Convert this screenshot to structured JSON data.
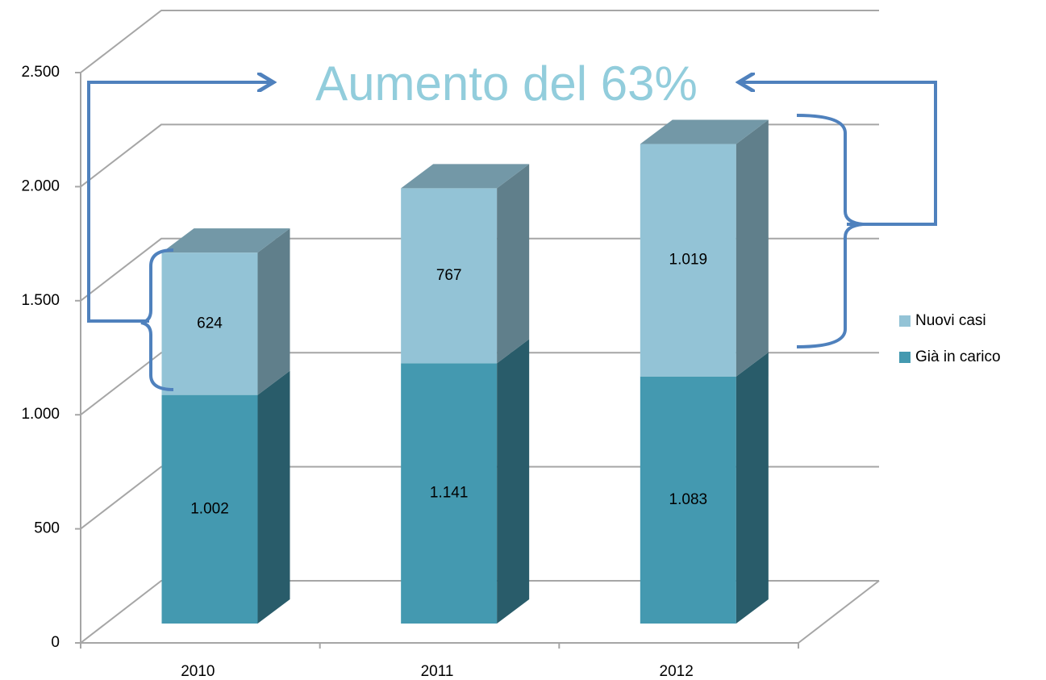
{
  "chart_data": {
    "type": "bar3d_stacked",
    "annotation": "Aumento del 63%",
    "categories": [
      "2010",
      "2011",
      "2012"
    ],
    "series": [
      {
        "name": "Già in carico",
        "color": "#4499b0",
        "values": [
          1002,
          1141,
          1083
        ],
        "value_labels": [
          "1.002",
          "1.141",
          "1.083"
        ]
      },
      {
        "name": "Nuovi casi",
        "color": "#93c3d6",
        "values": [
          624,
          767,
          1019
        ],
        "value_labels": [
          "624",
          "767",
          "1.019"
        ]
      }
    ],
    "ylim": [
      0,
      2500
    ],
    "yticks": [
      0,
      500,
      {
        "value": 1000,
        "label": "1.000"
      },
      {
        "value": 1500,
        "label": "1.500"
      },
      {
        "value": 2000,
        "label": "2.000"
      },
      {
        "value": 2500,
        "label": "2.500"
      }
    ],
    "grid": true,
    "legend": "right"
  }
}
